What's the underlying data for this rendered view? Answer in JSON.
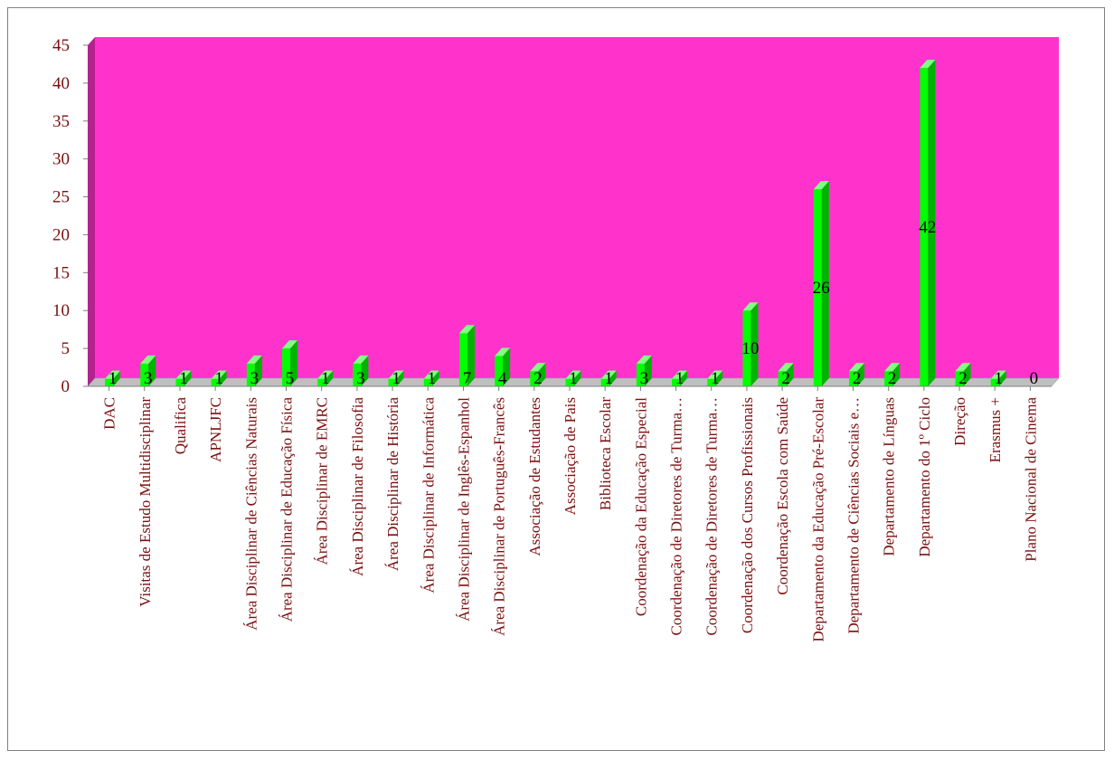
{
  "colors": {
    "plot_background": "#ff33cc",
    "side_wall": "#b3238f",
    "floor": "#bfbfbf",
    "bar_front": "#00ff00",
    "bar_side": "#00b300",
    "bar_top": "#80ff80",
    "axis_text": "#7b0f0f",
    "value_text": "#000000"
  },
  "chart_data": {
    "type": "bar",
    "style": "3d-column",
    "title": "",
    "xlabel": "",
    "ylabel": "",
    "ylim": [
      0,
      45
    ],
    "yticks": [
      0,
      5,
      10,
      15,
      20,
      25,
      30,
      35,
      40,
      45
    ],
    "grid": false,
    "legend": "none",
    "categories": [
      "DAC",
      "Visitas de Estudo Multidisciplinar",
      "Qualifica",
      "APNLJFC",
      "Área Disciplinar de Ciências Naturais",
      "Área Disciplinar de Educação Física",
      "Área Disciplinar de EMRC",
      "Área Disciplinar de Filosofia",
      "Área Disciplinar de História",
      "Área Disciplinar de Informática",
      "Área Disciplinar de Inglês-Espanhol",
      "Área Disciplinar de Português-Francês",
      "Associação de Estudantes",
      "Associação de Pais",
      "Biblioteca Escolar",
      "Coordenação da Educação Especial",
      "Coordenação de Diretores de Turma…",
      "Coordenação de Diretores de Turma…",
      "Coordenação dos Cursos Profissionais",
      "Coordenação Escola com Saúde",
      "Departamento da Educação Pré-Escolar",
      "Departamento de Ciências Sociais e…",
      "Departamento de Línguas",
      "Departamento do 1º Ciclo",
      "Direção",
      "Erasmus +",
      "Plano Nacional de Cinema"
    ],
    "values": [
      1,
      3,
      1,
      1,
      3,
      5,
      1,
      3,
      1,
      1,
      7,
      4,
      2,
      1,
      1,
      3,
      1,
      1,
      10,
      2,
      26,
      2,
      2,
      42,
      2,
      1,
      0
    ]
  }
}
